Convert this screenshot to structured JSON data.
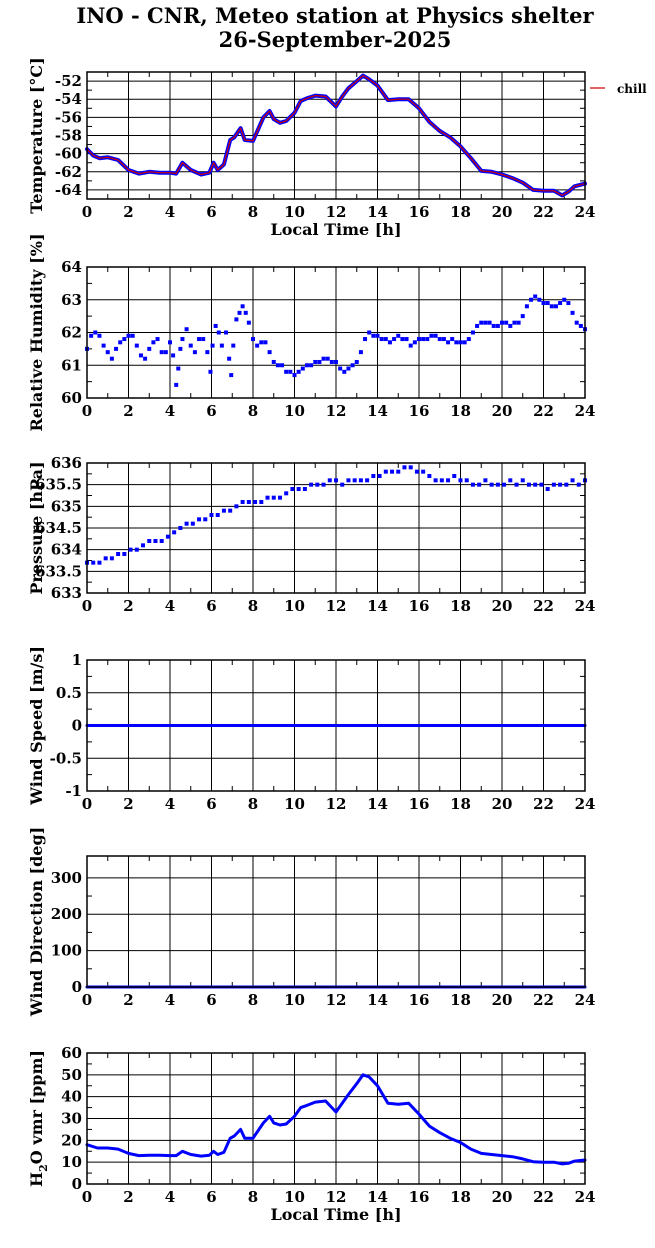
{
  "title": {
    "line1": "INO - CNR, Meteo station at Physics shelter",
    "line2": "26-September-2025"
  },
  "chart_data": [
    {
      "id": "temperature",
      "type": "line",
      "ylabel": "Temperature [°C]",
      "xlabel": "Local Time [h]",
      "xlim": [
        0,
        24
      ],
      "ylim": [
        -65,
        -51
      ],
      "yticks": [
        -64,
        -62,
        -60,
        -58,
        -56,
        -54,
        -52
      ],
      "xticks": [
        0,
        2,
        4,
        6,
        8,
        10,
        12,
        14,
        16,
        18,
        20,
        22,
        24
      ],
      "legend": {
        "entries": [
          "chill"
        ],
        "placement": "right, outside plot"
      },
      "series": [
        {
          "name": "",
          "color": "#0000ff",
          "x": [
            0,
            0.3,
            0.6,
            1,
            1.5,
            2,
            2.5,
            3,
            3.5,
            4,
            4.3,
            4.6,
            5,
            5.5,
            5.9,
            6.1,
            6.3,
            6.6,
            6.9,
            7.1,
            7.4,
            7.6,
            8,
            8.5,
            8.8,
            9,
            9.3,
            9.6,
            10,
            10.3,
            10.6,
            11,
            11.5,
            12,
            12.3,
            12.6,
            13,
            13.3,
            13.6,
            14,
            14.5,
            15,
            15.5,
            16,
            16.5,
            17,
            17.5,
            18,
            18.5,
            19,
            19.5,
            20,
            20.5,
            21,
            21.5,
            22,
            22.5,
            22.9,
            23.2,
            23.5,
            24
          ],
          "values": [
            -59.5,
            -60.2,
            -60.5,
            -60.4,
            -60.7,
            -61.8,
            -62.2,
            -62.0,
            -62.1,
            -62.1,
            -62.2,
            -61.0,
            -61.8,
            -62.3,
            -62.1,
            -61.0,
            -61.8,
            -61.2,
            -58.5,
            -58.2,
            -57.2,
            -58.5,
            -58.6,
            -56.0,
            -55.3,
            -56.2,
            -56.6,
            -56.4,
            -55.5,
            -54.2,
            -53.9,
            -53.6,
            -53.7,
            -54.8,
            -53.7,
            -52.8,
            -52.0,
            -51.4,
            -51.8,
            -52.5,
            -54.1,
            -54.0,
            -54.0,
            -55.0,
            -56.5,
            -57.5,
            -58.2,
            -59.2,
            -60.5,
            -61.9,
            -62.0,
            -62.3,
            -62.7,
            -63.2,
            -64.0,
            -64.1,
            -64.1,
            -64.6,
            -64.2,
            -63.6,
            -63.3
          ]
        },
        {
          "name": "chill",
          "color": "#cc0000",
          "x": [
            0,
            0.3,
            0.6,
            1,
            1.5,
            2,
            2.5,
            3,
            3.5,
            4,
            4.3,
            4.6,
            5,
            5.5,
            5.9,
            6.1,
            6.3,
            6.6,
            6.9,
            7.1,
            7.4,
            7.6,
            8,
            8.5,
            8.8,
            9,
            9.3,
            9.6,
            10,
            10.3,
            10.6,
            11,
            11.5,
            12,
            12.3,
            12.6,
            13,
            13.3,
            13.6,
            14,
            14.5,
            15,
            15.5,
            16,
            16.5,
            17,
            17.5,
            18,
            18.5,
            19,
            19.5,
            20,
            20.5,
            21,
            21.5,
            22,
            22.5,
            22.9,
            23.2,
            23.5,
            24
          ],
          "values": [
            -59.5,
            -60.2,
            -60.5,
            -60.4,
            -60.7,
            -61.8,
            -62.2,
            -62.0,
            -62.1,
            -62.1,
            -62.2,
            -61.0,
            -61.8,
            -62.3,
            -62.1,
            -61.0,
            -61.8,
            -61.2,
            -58.5,
            -58.2,
            -57.2,
            -58.5,
            -58.6,
            -56.0,
            -55.3,
            -56.2,
            -56.6,
            -56.4,
            -55.5,
            -54.2,
            -53.9,
            -53.6,
            -53.7,
            -54.8,
            -53.7,
            -52.8,
            -52.0,
            -51.4,
            -51.8,
            -52.5,
            -54.1,
            -54.0,
            -54.0,
            -55.0,
            -56.5,
            -57.5,
            -58.2,
            -59.2,
            -60.5,
            -61.9,
            -62.0,
            -62.3,
            -62.7,
            -63.2,
            -64.0,
            -64.1,
            -64.1,
            -64.6,
            -64.2,
            -63.6,
            -63.3
          ]
        }
      ]
    },
    {
      "id": "humidity",
      "type": "scatter",
      "ylabel": "Relative Humidity [%]",
      "xlim": [
        0,
        24
      ],
      "ylim": [
        60,
        64
      ],
      "yticks": [
        60,
        61,
        62,
        63,
        64
      ],
      "xticks": [
        0,
        2,
        4,
        6,
        8,
        10,
        12,
        14,
        16,
        18,
        20,
        22,
        24
      ],
      "series": [
        {
          "name": "",
          "color": "#0000ff",
          "x": [
            0,
            0.2,
            0.4,
            0.6,
            0.8,
            1.0,
            1.2,
            1.4,
            1.6,
            1.8,
            2.0,
            2.2,
            2.4,
            2.6,
            2.8,
            3.0,
            3.2,
            3.4,
            3.6,
            3.8,
            4.0,
            4.15,
            4.3,
            4.4,
            4.5,
            4.6,
            4.8,
            5.0,
            5.2,
            5.4,
            5.6,
            5.8,
            5.95,
            6.05,
            6.2,
            6.35,
            6.5,
            6.7,
            6.85,
            6.95,
            7.05,
            7.2,
            7.35,
            7.5,
            7.65,
            7.8,
            8.0,
            8.2,
            8.4,
            8.6,
            8.8,
            9.0,
            9.2,
            9.4,
            9.6,
            9.8,
            10.0,
            10.2,
            10.4,
            10.6,
            10.8,
            11.0,
            11.2,
            11.4,
            11.6,
            11.8,
            12.0,
            12.2,
            12.4,
            12.6,
            12.8,
            13.0,
            13.2,
            13.4,
            13.6,
            13.8,
            14.0,
            14.2,
            14.4,
            14.6,
            14.8,
            15.0,
            15.2,
            15.4,
            15.6,
            15.8,
            16.0,
            16.2,
            16.4,
            16.6,
            16.8,
            17.0,
            17.2,
            17.4,
            17.6,
            17.8,
            18.0,
            18.2,
            18.4,
            18.6,
            18.8,
            19.0,
            19.2,
            19.4,
            19.6,
            19.8,
            20.0,
            20.2,
            20.4,
            20.6,
            20.8,
            21.0,
            21.2,
            21.4,
            21.6,
            21.8,
            22.0,
            22.2,
            22.4,
            22.6,
            22.8,
            23.0,
            23.2,
            23.4,
            23.6,
            23.8,
            24.0
          ],
          "values": [
            61.5,
            61.9,
            62.0,
            61.9,
            61.6,
            61.4,
            61.2,
            61.5,
            61.7,
            61.8,
            61.9,
            61.9,
            61.6,
            61.3,
            61.2,
            61.5,
            61.7,
            61.8,
            61.4,
            61.4,
            61.7,
            61.3,
            60.4,
            60.9,
            61.5,
            61.8,
            62.1,
            61.6,
            61.4,
            61.8,
            61.8,
            61.4,
            60.8,
            61.6,
            62.2,
            62.0,
            61.6,
            62.0,
            61.2,
            60.7,
            61.6,
            62.4,
            62.6,
            62.8,
            62.6,
            62.3,
            61.8,
            61.6,
            61.7,
            61.7,
            61.4,
            61.1,
            61.0,
            61.0,
            60.8,
            60.8,
            60.7,
            60.8,
            60.9,
            61.0,
            61.0,
            61.1,
            61.1,
            61.2,
            61.2,
            61.1,
            61.1,
            60.9,
            60.8,
            60.9,
            61.0,
            61.1,
            61.4,
            61.8,
            62.0,
            61.9,
            61.9,
            61.8,
            61.8,
            61.7,
            61.8,
            61.9,
            61.8,
            61.8,
            61.6,
            61.7,
            61.8,
            61.8,
            61.8,
            61.9,
            61.9,
            61.8,
            61.8,
            61.7,
            61.8,
            61.7,
            61.7,
            61.7,
            61.8,
            62.0,
            62.2,
            62.3,
            62.3,
            62.3,
            62.2,
            62.2,
            62.3,
            62.3,
            62.2,
            62.3,
            62.3,
            62.5,
            62.8,
            63.0,
            63.1,
            63.0,
            62.9,
            62.9,
            62.8,
            62.8,
            62.9,
            63.0,
            62.9,
            62.6,
            62.3,
            62.2,
            62.1
          ]
        }
      ]
    },
    {
      "id": "pressure",
      "type": "scatter",
      "ylabel": "Pressure [hPa]",
      "xlim": [
        0,
        24
      ],
      "ylim": [
        633,
        636
      ],
      "yticks": [
        633,
        633.5,
        634,
        634.5,
        635,
        635.5,
        636
      ],
      "xticks": [
        0,
        2,
        4,
        6,
        8,
        10,
        12,
        14,
        16,
        18,
        20,
        22,
        24
      ],
      "series": [
        {
          "name": "",
          "color": "#0000ff",
          "x": [
            0,
            0.3,
            0.6,
            0.9,
            1.2,
            1.5,
            1.8,
            2.1,
            2.4,
            2.7,
            3.0,
            3.3,
            3.6,
            3.9,
            4.2,
            4.5,
            4.8,
            5.1,
            5.4,
            5.7,
            6.0,
            6.3,
            6.6,
            6.9,
            7.2,
            7.5,
            7.8,
            8.1,
            8.4,
            8.7,
            9.0,
            9.3,
            9.6,
            9.9,
            10.2,
            10.5,
            10.8,
            11.1,
            11.4,
            11.7,
            12.0,
            12.3,
            12.6,
            12.9,
            13.2,
            13.5,
            13.8,
            14.1,
            14.4,
            14.7,
            15.0,
            15.3,
            15.6,
            15.9,
            16.2,
            16.5,
            16.8,
            17.1,
            17.4,
            17.7,
            18.0,
            18.3,
            18.6,
            18.9,
            19.2,
            19.5,
            19.8,
            20.1,
            20.4,
            20.7,
            21.0,
            21.3,
            21.6,
            21.9,
            22.2,
            22.5,
            22.8,
            23.1,
            23.4,
            23.7,
            24.0
          ],
          "values": [
            633.7,
            633.7,
            633.7,
            633.8,
            633.8,
            633.9,
            633.9,
            634.0,
            634.0,
            634.1,
            634.2,
            634.2,
            634.2,
            634.3,
            634.4,
            634.5,
            634.6,
            634.6,
            634.7,
            634.7,
            634.8,
            634.8,
            634.9,
            634.9,
            635.0,
            635.1,
            635.1,
            635.1,
            635.1,
            635.2,
            635.2,
            635.2,
            635.3,
            635.4,
            635.4,
            635.4,
            635.5,
            635.5,
            635.5,
            635.6,
            635.6,
            635.5,
            635.6,
            635.6,
            635.6,
            635.6,
            635.7,
            635.7,
            635.8,
            635.8,
            635.8,
            635.9,
            635.9,
            635.8,
            635.8,
            635.7,
            635.6,
            635.6,
            635.6,
            635.7,
            635.6,
            635.6,
            635.5,
            635.5,
            635.6,
            635.5,
            635.5,
            635.5,
            635.6,
            635.5,
            635.6,
            635.5,
            635.5,
            635.5,
            635.4,
            635.5,
            635.5,
            635.5,
            635.6,
            635.5,
            635.6
          ]
        }
      ]
    },
    {
      "id": "wind-speed",
      "type": "line",
      "ylabel": "Wind Speed [m/s]",
      "xlim": [
        0,
        24
      ],
      "ylim": [
        -1,
        1
      ],
      "yticks": [
        -1,
        -0.5,
        0,
        0.5,
        1
      ],
      "xticks": [
        0,
        2,
        4,
        6,
        8,
        10,
        12,
        14,
        16,
        18,
        20,
        22,
        24
      ],
      "series": [
        {
          "name": "",
          "color": "#0000ff",
          "x": [
            0,
            24
          ],
          "values": [
            0,
            0
          ]
        }
      ]
    },
    {
      "id": "wind-direction",
      "type": "line",
      "ylabel": "Wind Direction [deg]",
      "xlim": [
        0,
        24
      ],
      "ylim": [
        0,
        360
      ],
      "yticks": [
        0,
        100,
        200,
        300
      ],
      "xticks": [
        0,
        2,
        4,
        6,
        8,
        10,
        12,
        14,
        16,
        18,
        20,
        22,
        24
      ],
      "series": [
        {
          "name": "",
          "color": "#0000ff",
          "x": [
            0,
            24
          ],
          "values": [
            0,
            0
          ]
        }
      ]
    },
    {
      "id": "h2o-vmr",
      "type": "line",
      "ylabel": "H",
      "ylabel_sub": "2",
      "ylabel_rest": "O vmr [ppm]",
      "xlabel": "Local Time [h]",
      "xlim": [
        0,
        24
      ],
      "ylim": [
        0,
        60
      ],
      "yticks": [
        0,
        10,
        20,
        30,
        40,
        50,
        60
      ],
      "xticks": [
        0,
        2,
        4,
        6,
        8,
        10,
        12,
        14,
        16,
        18,
        20,
        22,
        24
      ],
      "series": [
        {
          "name": "",
          "color": "#0000ff",
          "x": [
            0,
            0.5,
            1,
            1.5,
            2,
            2.5,
            3,
            3.5,
            4,
            4.3,
            4.6,
            5,
            5.5,
            5.9,
            6.1,
            6.3,
            6.6,
            6.9,
            7.1,
            7.4,
            7.6,
            8,
            8.5,
            8.8,
            9,
            9.3,
            9.6,
            10,
            10.3,
            10.6,
            11,
            11.5,
            12,
            12.3,
            12.6,
            13,
            13.3,
            13.6,
            14,
            14.5,
            15,
            15.5,
            16,
            16.5,
            17,
            17.5,
            18,
            18.5,
            19,
            19.5,
            20,
            20.5,
            21,
            21.5,
            22,
            22.5,
            22.9,
            23.2,
            23.5,
            24
          ],
          "values": [
            18,
            16.5,
            16.5,
            16,
            14,
            13,
            13.2,
            13.2,
            13,
            13,
            15,
            13.5,
            12.8,
            13.2,
            15,
            13.5,
            14.5,
            21,
            22,
            25,
            21,
            21,
            28,
            31,
            28,
            27,
            27.5,
            31,
            35,
            36,
            37.5,
            38,
            33,
            37,
            41,
            46,
            50,
            49,
            45,
            37,
            36.5,
            37,
            32,
            26.5,
            23.5,
            21,
            19,
            16,
            14,
            13.5,
            13,
            12.5,
            11.5,
            10.2,
            10,
            10,
            9.2,
            9.5,
            10.5,
            11
          ]
        }
      ]
    }
  ]
}
